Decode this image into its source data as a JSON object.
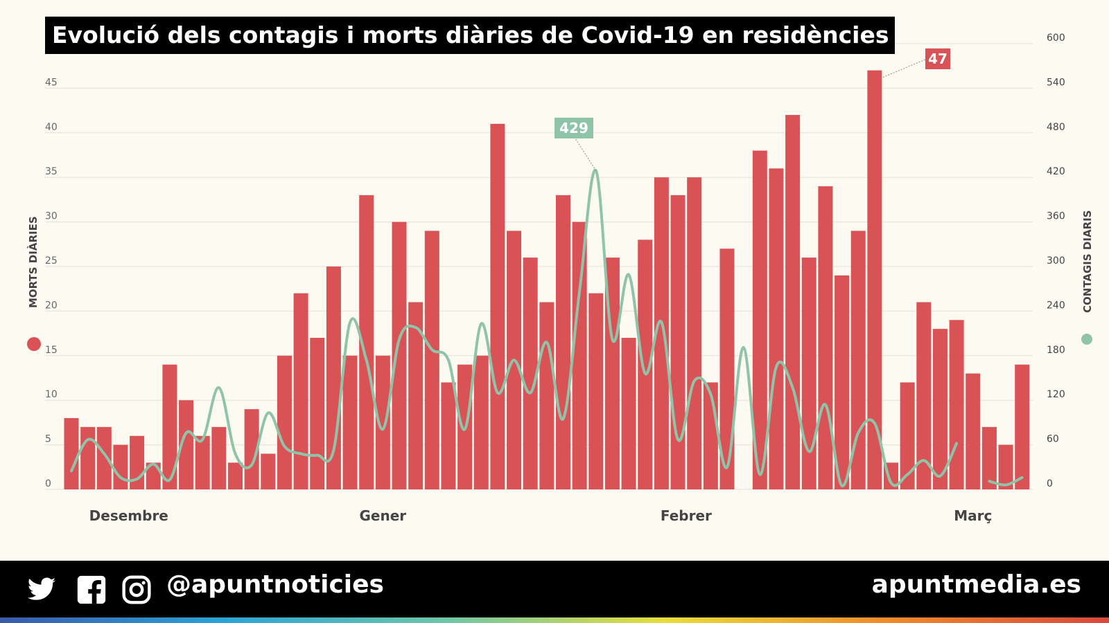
{
  "title": "Evolució dels contagis i morts diàries de Covid-19 en residències",
  "footer": {
    "handle": "@apuntnoticies",
    "site": "apuntmedia.es",
    "icons": [
      "twitter-icon",
      "facebook-icon",
      "instagram-icon"
    ]
  },
  "chart_data": {
    "type": "bar+line",
    "title": "Evolució dels contagis i morts diàries de Covid-19 en residències",
    "x_tick_labels": [
      "Desembre",
      "Gener",
      "Febrer",
      "Març"
    ],
    "x_tick_positions": [
      3.5,
      19,
      37.5,
      55
    ],
    "left_axis": {
      "label": "MORTS DIÀRIES",
      "range": [
        0,
        50
      ],
      "ticks": [
        0,
        5,
        10,
        15,
        20,
        25,
        30,
        35,
        40,
        45
      ]
    },
    "right_axis": {
      "label": "CONTAGIS DIARIS",
      "range": [
        0,
        600
      ],
      "ticks": [
        0,
        60,
        120,
        180,
        240,
        300,
        360,
        420,
        480,
        540,
        600
      ]
    },
    "grid": true,
    "colors": {
      "morts": "#d95256",
      "contagis": "#8fc4a8",
      "background": "#fdfaf2"
    },
    "series": [
      {
        "name": "MORTS DIÀRIES",
        "type": "bar",
        "axis": "left",
        "values": [
          8,
          7,
          7,
          5,
          6,
          3,
          14,
          10,
          6,
          7,
          3,
          9,
          4,
          15,
          22,
          17,
          25,
          15,
          33,
          15,
          30,
          21,
          29,
          12,
          14,
          15,
          41,
          29,
          26,
          21,
          33,
          30,
          22,
          26,
          17,
          28,
          35,
          33,
          35,
          12,
          27,
          0,
          38,
          36,
          42,
          26,
          34,
          24,
          29,
          47,
          3,
          12,
          21,
          18,
          19,
          13,
          7,
          5,
          14
        ]
      },
      {
        "name": "CONTAGIS DIARIS",
        "type": "line",
        "axis": "right",
        "values": [
          25,
          67,
          48,
          16,
          14,
          34,
          13,
          76,
          67,
          137,
          48,
          33,
          103,
          58,
          48,
          46,
          53,
          225,
          174,
          81,
          202,
          218,
          188,
          174,
          81,
          223,
          130,
          174,
          130,
          198,
          95,
          267,
          429,
          202,
          289,
          156,
          225,
          67,
          146,
          128,
          30,
          191,
          20,
          165,
          137,
          51,
          114,
          5,
          76,
          89,
          9,
          20,
          39,
          18,
          62,
          null,
          11,
          6,
          16
        ]
      }
    ],
    "annotations": [
      {
        "text": "47",
        "series": "MORTS DIÀRIES",
        "index": 49
      },
      {
        "text": "429",
        "series": "CONTAGIS DIARIS",
        "index": 32
      }
    ]
  }
}
